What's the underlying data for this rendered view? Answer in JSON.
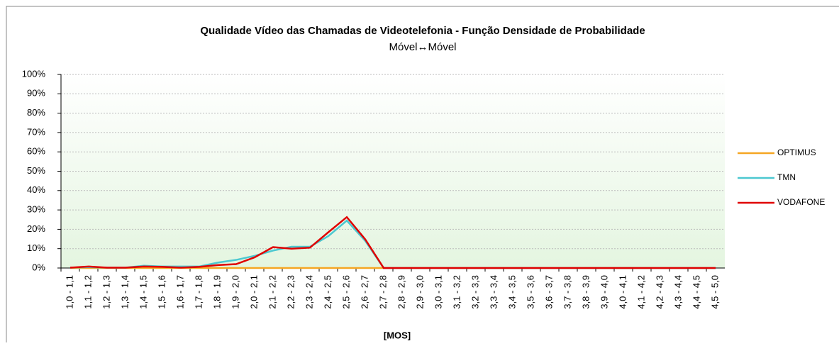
{
  "chart_data": {
    "type": "line",
    "title": "Qualidade Vídeo das Chamadas de Videotelefonia - Função Densidade de Probabilidade",
    "subtitle": "Móvel↔Móvel",
    "x_label": "[MOS]",
    "categories": [
      "1,0 - 1,1",
      "1,1 - 1,2",
      "1,2 - 1,3",
      "1,3 - 1,4",
      "1,4 - 1,5",
      "1,5 - 1,6",
      "1,6 - 1,7",
      "1,7 - 1,8",
      "1,8 - 1,9",
      "1,9 - 2,0",
      "2,0 - 2,1",
      "2,1 - 2,2",
      "2,2 - 2,3",
      "2,3 - 2,4",
      "2,4 - 2,5",
      "2,5 - 2,6",
      "2,6 - 2,7",
      "2,7 - 2,8",
      "2,8 - 2,9",
      "2,9 - 3,0",
      "3,0 - 3,1",
      "3,1 - 3,2",
      "3,2 - 3,3",
      "3,3 - 3,4",
      "3,4 - 3,5",
      "3,5 - 3,6",
      "3,6 - 3,7",
      "3,7 - 3,8",
      "3,8 - 3,9",
      "3,9 - 4,0",
      "4,0 - 4,1",
      "4,1 - 4,2",
      "4,2 - 4,3",
      "4,3 - 4,4",
      "4,4 - 4,5",
      "4,5 - 5,0"
    ],
    "series": [
      {
        "name": "OPTIMUS",
        "color": "#f5a623",
        "values": [
          0,
          0,
          0,
          0,
          0,
          0,
          0,
          0,
          0,
          0,
          0,
          0,
          0,
          0,
          0,
          0,
          0,
          0,
          0,
          0,
          0,
          0,
          0,
          0,
          0,
          0,
          0,
          0,
          0,
          0,
          0,
          0,
          0,
          0,
          0,
          0
        ]
      },
      {
        "name": "TMN",
        "color": "#4cc8d0",
        "values": [
          0.2,
          0.5,
          0.2,
          0.2,
          1.2,
          0.8,
          0.8,
          0.8,
          2.8,
          4.2,
          6.3,
          9,
          11,
          11,
          16.5,
          24.5,
          14,
          0,
          0,
          0,
          0,
          0,
          0,
          0,
          0,
          0,
          0,
          0,
          0,
          0,
          0,
          0,
          0,
          0,
          0,
          0
        ]
      },
      {
        "name": "VODAFONE",
        "color": "#e00000",
        "values": [
          0.2,
          0.8,
          0.2,
          0.2,
          0.8,
          0.6,
          0.2,
          0.6,
          1.5,
          2,
          5.5,
          10.8,
          10,
          10.5,
          18.5,
          26.3,
          14.8,
          0,
          0,
          0,
          0,
          0,
          0,
          0,
          0,
          0,
          0,
          0,
          0,
          0,
          0,
          0,
          0,
          0,
          0,
          0
        ]
      }
    ],
    "ylim": [
      0,
      100
    ],
    "yticks": [
      {
        "value": 0,
        "label": "0%"
      },
      {
        "value": 10,
        "label": "10%"
      },
      {
        "value": 20,
        "label": "20%"
      },
      {
        "value": 30,
        "label": "30%"
      },
      {
        "value": 40,
        "label": "40%"
      },
      {
        "value": 50,
        "label": "50%"
      },
      {
        "value": 60,
        "label": "60%"
      },
      {
        "value": 70,
        "label": "70%"
      },
      {
        "value": 80,
        "label": "80%"
      },
      {
        "value": 90,
        "label": "90%"
      },
      {
        "value": 100,
        "label": "100%"
      }
    ],
    "grid": true,
    "legend": "right"
  }
}
